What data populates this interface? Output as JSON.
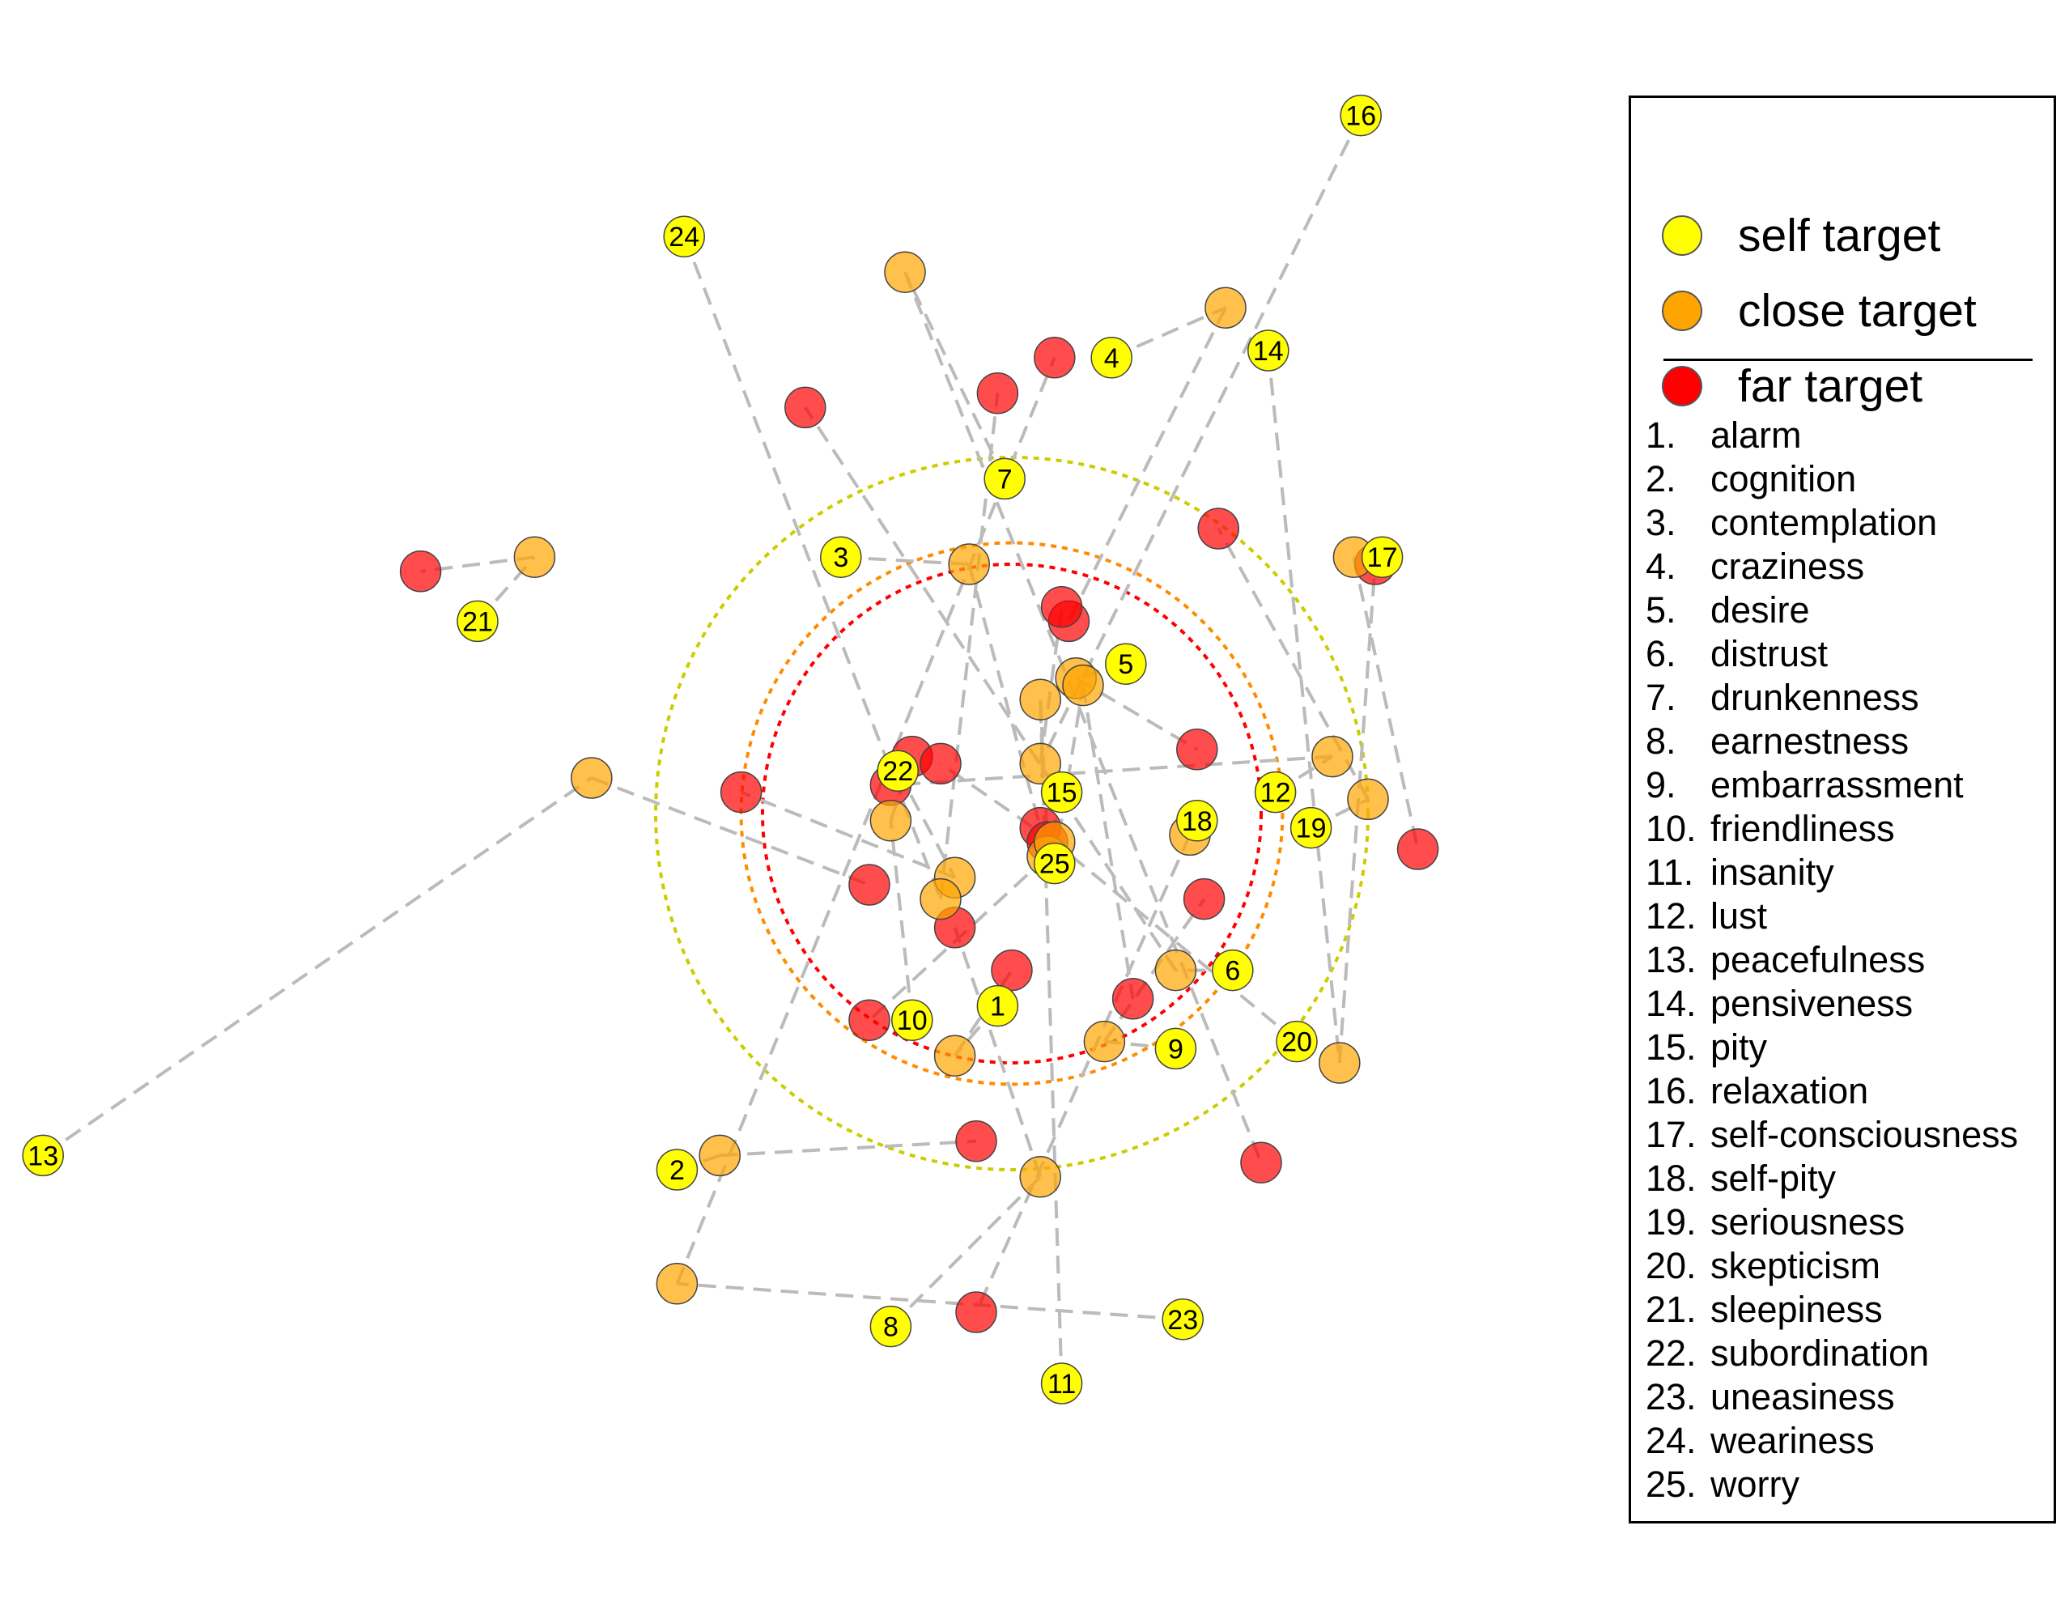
{
  "chart_data": {
    "type": "scatter",
    "title": "",
    "xlabel": "",
    "ylabel": "",
    "axes_visible": false,
    "grid": false,
    "legend_position": "right",
    "colors": {
      "self": "#FFFF00",
      "close": "#FFA500",
      "far": "#FF0000",
      "connector": "#BBBBBB",
      "ring_self": "#CCCC00",
      "ring_close": "#FF8C00",
      "ring_far": "#FF0000"
    },
    "center": [
      0,
      0
    ],
    "rings": [
      {
        "group": "self",
        "radius": 0.5
      },
      {
        "group": "close",
        "radius": 0.38
      },
      {
        "group": "far",
        "radius": 0.35
      }
    ],
    "series": [
      {
        "name": "self target",
        "color": "#FFFF00",
        "points": [
          {
            "id": 1,
            "x": -0.02,
            "y": -0.27
          },
          {
            "id": 2,
            "x": -0.47,
            "y": -0.5
          },
          {
            "id": 3,
            "x": -0.24,
            "y": 0.36
          },
          {
            "id": 4,
            "x": 0.14,
            "y": 0.64
          },
          {
            "id": 5,
            "x": 0.16,
            "y": 0.21
          },
          {
            "id": 6,
            "x": 0.31,
            "y": -0.22
          },
          {
            "id": 7,
            "x": -0.01,
            "y": 0.47
          },
          {
            "id": 8,
            "x": -0.17,
            "y": -0.72
          },
          {
            "id": 9,
            "x": 0.23,
            "y": -0.33
          },
          {
            "id": 10,
            "x": -0.14,
            "y": -0.29
          },
          {
            "id": 11,
            "x": 0.07,
            "y": -0.8
          },
          {
            "id": 12,
            "x": 0.37,
            "y": 0.03
          },
          {
            "id": 13,
            "x": -1.36,
            "y": -0.48
          },
          {
            "id": 14,
            "x": 0.36,
            "y": 0.65
          },
          {
            "id": 15,
            "x": 0.07,
            "y": 0.03
          },
          {
            "id": 16,
            "x": 0.49,
            "y": 0.98
          },
          {
            "id": 17,
            "x": 0.52,
            "y": 0.36
          },
          {
            "id": 18,
            "x": 0.26,
            "y": -0.01
          },
          {
            "id": 19,
            "x": 0.42,
            "y": -0.02
          },
          {
            "id": 20,
            "x": 0.4,
            "y": -0.32
          },
          {
            "id": 21,
            "x": -0.75,
            "y": 0.27
          },
          {
            "id": 22,
            "x": -0.16,
            "y": 0.06
          },
          {
            "id": 23,
            "x": 0.24,
            "y": -0.71
          },
          {
            "id": 24,
            "x": -0.46,
            "y": 0.81
          },
          {
            "id": 25,
            "x": 0.06,
            "y": -0.07
          }
        ]
      },
      {
        "name": "close target",
        "color": "#FFA500",
        "points": [
          {
            "id": 1,
            "x": -0.08,
            "y": -0.34
          },
          {
            "id": 2,
            "x": -0.41,
            "y": -0.48
          },
          {
            "id": 3,
            "x": -0.06,
            "y": 0.35
          },
          {
            "id": 4,
            "x": 0.3,
            "y": 0.71
          },
          {
            "id": 5,
            "x": 0.09,
            "y": 0.19
          },
          {
            "id": 6,
            "x": 0.23,
            "y": -0.22
          },
          {
            "id": 7,
            "x": -0.15,
            "y": 0.76
          },
          {
            "id": 8,
            "x": 0.04,
            "y": -0.51
          },
          {
            "id": 9,
            "x": 0.13,
            "y": -0.32
          },
          {
            "id": 10,
            "x": -0.17,
            "y": -0.01
          },
          {
            "id": 11,
            "x": 0.04,
            "y": 0.16
          },
          {
            "id": 12,
            "x": 0.45,
            "y": 0.08
          },
          {
            "id": 13,
            "x": -0.59,
            "y": 0.05
          },
          {
            "id": 14,
            "x": 0.46,
            "y": -0.35
          },
          {
            "id": 15,
            "x": 0.05,
            "y": -0.06
          },
          {
            "id": 16,
            "x": 0.04,
            "y": 0.07
          },
          {
            "id": 17,
            "x": 0.48,
            "y": 0.36
          },
          {
            "id": 18,
            "x": 0.25,
            "y": -0.03
          },
          {
            "id": 19,
            "x": 0.5,
            "y": 0.02
          },
          {
            "id": 20,
            "x": 0.06,
            "y": -0.04
          },
          {
            "id": 21,
            "x": -0.67,
            "y": 0.36
          },
          {
            "id": 22,
            "x": -0.08,
            "y": -0.09
          },
          {
            "id": 23,
            "x": -0.47,
            "y": -0.66
          },
          {
            "id": 24,
            "x": -0.1,
            "y": -0.12
          },
          {
            "id": 25,
            "x": 0.1,
            "y": 0.18
          }
        ]
      },
      {
        "name": "far target",
        "color": "#FF0000",
        "points": [
          {
            "id": 1,
            "x": 0.0,
            "y": -0.22
          },
          {
            "id": 2,
            "x": -0.05,
            "y": -0.46
          },
          {
            "id": 3,
            "x": 0.04,
            "y": -0.02
          },
          {
            "id": 4,
            "x": 0.08,
            "y": 0.27
          },
          {
            "id": 5,
            "x": 0.26,
            "y": 0.09
          },
          {
            "id": 6,
            "x": -0.29,
            "y": 0.57
          },
          {
            "id": 7,
            "x": 0.35,
            "y": -0.49
          },
          {
            "id": 8,
            "x": -0.08,
            "y": -0.16
          },
          {
            "id": 9,
            "x": 0.27,
            "y": -0.12
          },
          {
            "id": 10,
            "x": -0.14,
            "y": 0.08
          },
          {
            "id": 11,
            "x": 0.05,
            "y": -0.04
          },
          {
            "id": 12,
            "x": -0.17,
            "y": 0.04
          },
          {
            "id": 13,
            "x": -0.2,
            "y": -0.1
          },
          {
            "id": 14,
            "x": 0.51,
            "y": 0.35
          },
          {
            "id": 15,
            "x": -0.2,
            "y": -0.29
          },
          {
            "id": 16,
            "x": 0.07,
            "y": 0.29
          },
          {
            "id": 17,
            "x": 0.57,
            "y": -0.05
          },
          {
            "id": 18,
            "x": -0.05,
            "y": -0.7
          },
          {
            "id": 19,
            "x": 0.29,
            "y": 0.4
          },
          {
            "id": 20,
            "x": -0.1,
            "y": 0.07
          },
          {
            "id": 21,
            "x": -0.83,
            "y": 0.34
          },
          {
            "id": 22,
            "x": -0.38,
            "y": 0.03
          },
          {
            "id": 23,
            "x": 0.06,
            "y": 0.64
          },
          {
            "id": 24,
            "x": -0.02,
            "y": 0.59
          },
          {
            "id": 25,
            "x": 0.17,
            "y": -0.26
          }
        ]
      }
    ],
    "legend_markers": [
      "self target",
      "close target",
      "far target"
    ],
    "legend_items": [
      {
        "num": "1.",
        "label": "alarm"
      },
      {
        "num": "2.",
        "label": "cognition"
      },
      {
        "num": "3.",
        "label": "contemplation"
      },
      {
        "num": "4.",
        "label": "craziness"
      },
      {
        "num": "5.",
        "label": "desire"
      },
      {
        "num": "6.",
        "label": "distrust"
      },
      {
        "num": "7.",
        "label": "drunkenness"
      },
      {
        "num": "8.",
        "label": "earnestness"
      },
      {
        "num": "9.",
        "label": "embarrassment"
      },
      {
        "num": "10.",
        "label": "friendliness"
      },
      {
        "num": "11.",
        "label": "insanity"
      },
      {
        "num": "12.",
        "label": "lust"
      },
      {
        "num": "13.",
        "label": "peacefulness"
      },
      {
        "num": "14.",
        "label": "pensiveness"
      },
      {
        "num": "15.",
        "label": "pity"
      },
      {
        "num": "16.",
        "label": "relaxation"
      },
      {
        "num": "17.",
        "label": "self-consciousness"
      },
      {
        "num": "18.",
        "label": "self-pity"
      },
      {
        "num": "19.",
        "label": "seriousness"
      },
      {
        "num": "20.",
        "label": "skepticism"
      },
      {
        "num": "21.",
        "label": "sleepiness"
      },
      {
        "num": "22.",
        "label": "subordination"
      },
      {
        "num": "23.",
        "label": "uneasiness"
      },
      {
        "num": "24.",
        "label": "weariness"
      },
      {
        "num": "25.",
        "label": "worry"
      }
    ]
  }
}
